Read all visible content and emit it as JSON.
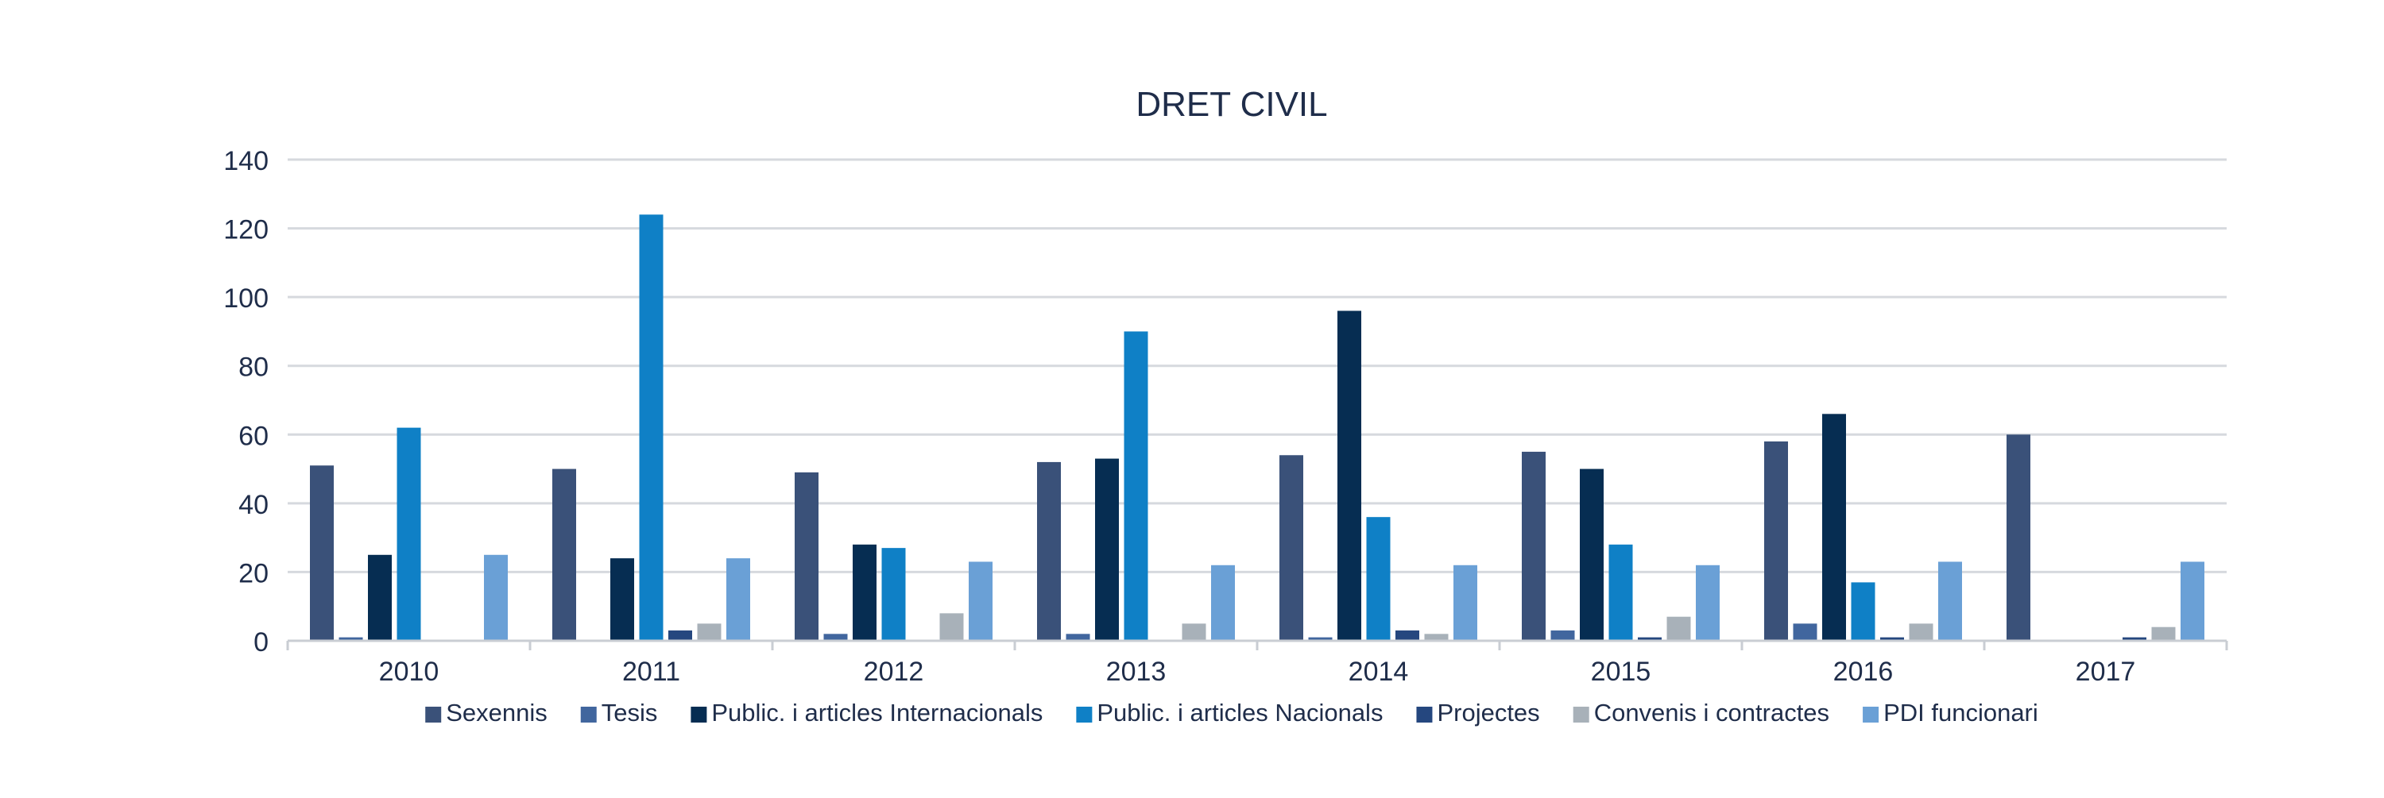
{
  "chart_data": {
    "type": "bar",
    "title": "DRET CIVIL",
    "xlabel": "",
    "ylabel": "",
    "ylim": [
      0,
      140
    ],
    "yticks": [
      0,
      20,
      40,
      60,
      80,
      100,
      120,
      140
    ],
    "grid": true,
    "legend_position": "bottom",
    "categories": [
      "2010",
      "2011",
      "2012",
      "2013",
      "2014",
      "2015",
      "2016",
      "2017"
    ],
    "series": [
      {
        "name": "Sexennis",
        "color": "#3a5179",
        "values": [
          51,
          50,
          49,
          52,
          54,
          55,
          58,
          60
        ]
      },
      {
        "name": "Tesis",
        "color": "#41669e",
        "values": [
          1,
          0,
          2,
          2,
          1,
          3,
          5,
          0
        ]
      },
      {
        "name": "Public. i articles Internacionals",
        "color": "#062d52",
        "values": [
          25,
          24,
          28,
          53,
          96,
          50,
          66,
          0
        ]
      },
      {
        "name": "Public. i articles Nacionals",
        "color": "#0f80c6",
        "values": [
          62,
          124,
          27,
          90,
          36,
          28,
          17,
          0
        ]
      },
      {
        "name": "Projectes",
        "color": "#25477f",
        "values": [
          0,
          3,
          0,
          0,
          3,
          1,
          1,
          1
        ]
      },
      {
        "name": "Convenis i contractes",
        "color": "#a8b1b9",
        "values": [
          0,
          5,
          8,
          5,
          2,
          7,
          5,
          4
        ]
      },
      {
        "name": "PDI funcionari",
        "color": "#6aa0d6",
        "values": [
          25,
          24,
          23,
          22,
          22,
          22,
          23,
          23
        ]
      }
    ]
  }
}
